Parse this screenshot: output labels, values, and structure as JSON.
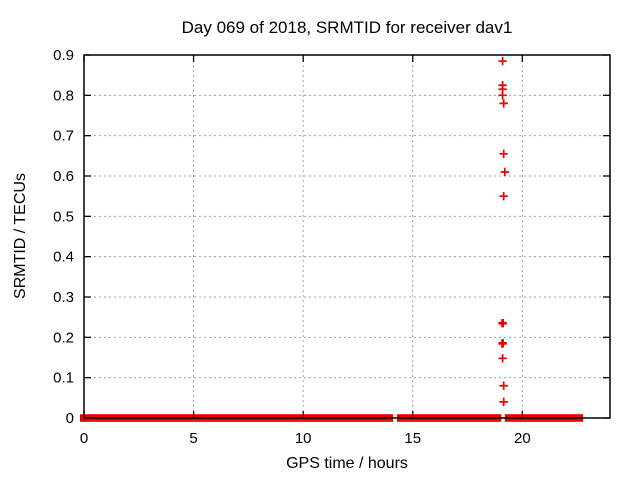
{
  "window": {
    "background": "#ffffff"
  },
  "chart_data": {
    "type": "scatter",
    "title": "Day 069 of 2018, SRMTID for receiver dav1",
    "xlabel": "GPS time / hours",
    "ylabel": "SRMTID / TECUs",
    "xlim": [
      0,
      24
    ],
    "ylim": [
      0,
      0.9
    ],
    "grid": true,
    "legend": "none",
    "marker": "plus",
    "colors": {
      "series": "#ee0000",
      "grid": "#a0a0a0",
      "frame": "#000000",
      "text": "#000000"
    },
    "xticks": [
      {
        "v": 0,
        "label": "0"
      },
      {
        "v": 5,
        "label": "5"
      },
      {
        "v": 10,
        "label": "10"
      },
      {
        "v": 15,
        "label": "15"
      },
      {
        "v": 20,
        "label": "20"
      }
    ],
    "yticks": [
      {
        "v": 0.0,
        "label": "0"
      },
      {
        "v": 0.1,
        "label": "0.1"
      },
      {
        "v": 0.2,
        "label": "0.2"
      },
      {
        "v": 0.3,
        "label": "0.3"
      },
      {
        "v": 0.4,
        "label": "0.4"
      },
      {
        "v": 0.5,
        "label": "0.5"
      },
      {
        "v": 0.6,
        "label": "0.6"
      },
      {
        "v": 0.7,
        "label": "0.7"
      },
      {
        "v": 0.8,
        "label": "0.8"
      },
      {
        "v": 0.9,
        "label": "0.9"
      }
    ],
    "zero_band": {
      "y": 0,
      "segments": [
        [
          0,
          14.1
        ],
        [
          14.28,
          19.04
        ],
        [
          19.2,
          22.77
        ]
      ]
    },
    "points": [
      {
        "x": 19.1,
        "y": 0.885
      },
      {
        "x": 19.1,
        "y": 0.825
      },
      {
        "x": 19.1,
        "y": 0.815
      },
      {
        "x": 19.1,
        "y": 0.8
      },
      {
        "x": 19.15,
        "y": 0.78
      },
      {
        "x": 19.15,
        "y": 0.655
      },
      {
        "x": 19.2,
        "y": 0.61
      },
      {
        "x": 19.15,
        "y": 0.55
      },
      {
        "x": 19.1,
        "y": 0.235,
        "bold": true
      },
      {
        "x": 19.1,
        "y": 0.185,
        "bold": true
      },
      {
        "x": 19.1,
        "y": 0.148
      },
      {
        "x": 19.15,
        "y": 0.08
      },
      {
        "x": 19.15,
        "y": 0.04
      }
    ]
  }
}
